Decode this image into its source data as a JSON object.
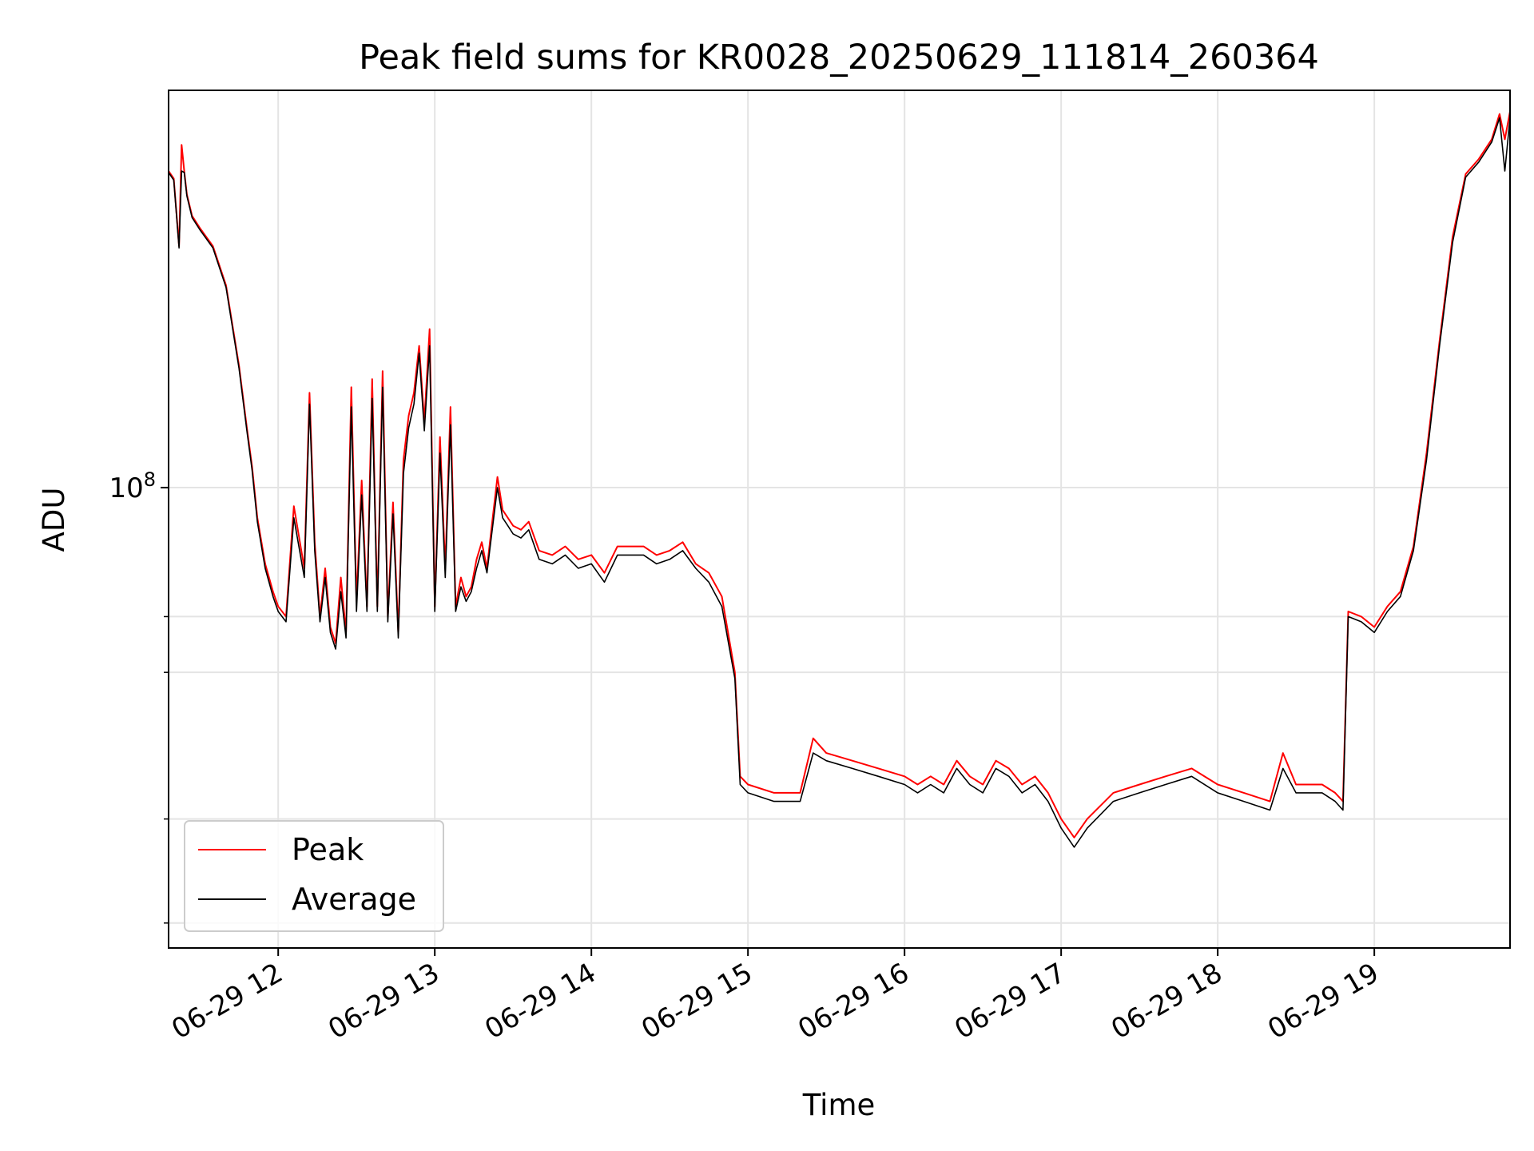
{
  "chart_data": {
    "type": "line",
    "title": "Peak field sums for KR0028_20250629_111814_260364",
    "xlabel": "Time",
    "ylabel": "ADU",
    "y_scale": "log",
    "ylim": [
      28000000,
      300000000
    ],
    "xlim": [
      "2025-06-29 11:18",
      "2025-06-29 19:52"
    ],
    "x_ticks": [
      "06-29 12",
      "06-29 13",
      "06-29 14",
      "06-29 15",
      "06-29 16",
      "06-29 17",
      "06-29 18",
      "06-29 19"
    ],
    "x_tick_values": [
      "2025-06-29 12:00",
      "2025-06-29 13:00",
      "2025-06-29 14:00",
      "2025-06-29 15:00",
      "2025-06-29 16:00",
      "2025-06-29 17:00",
      "2025-06-29 18:00",
      "2025-06-29 19:00"
    ],
    "y_tick_labels": [
      {
        "base": "10",
        "exp": "8",
        "value": 100000000
      }
    ],
    "y_minor_ticks": [
      30000000,
      40000000,
      60000000,
      70000000
    ],
    "grid": true,
    "legend_position": "lower-left",
    "colors": {
      "Peak": "#ff0000",
      "Average": "#000000"
    },
    "series": [
      {
        "name": "Peak",
        "x": [
          "11:18",
          "11:20",
          "11:22",
          "11:23",
          "11:24",
          "11:25",
          "11:27",
          "11:30",
          "11:35",
          "11:40",
          "11:45",
          "11:48",
          "11:50",
          "11:52",
          "11:55",
          "11:58",
          "12:00",
          "12:03",
          "12:06",
          "12:10",
          "12:12",
          "12:14",
          "12:16",
          "12:18",
          "12:20",
          "12:22",
          "12:24",
          "12:26",
          "12:28",
          "12:30",
          "12:32",
          "12:34",
          "12:36",
          "12:38",
          "12:40",
          "12:42",
          "12:44",
          "12:46",
          "12:48",
          "12:50",
          "12:52",
          "12:54",
          "12:56",
          "12:58",
          "13:00",
          "13:02",
          "13:04",
          "13:06",
          "13:08",
          "13:10",
          "13:12",
          "13:14",
          "13:16",
          "13:18",
          "13:20",
          "13:22",
          "13:24",
          "13:26",
          "13:28",
          "13:30",
          "13:33",
          "13:36",
          "13:40",
          "13:45",
          "13:50",
          "13:55",
          "14:00",
          "14:05",
          "14:10",
          "14:15",
          "14:20",
          "14:25",
          "14:30",
          "14:35",
          "14:40",
          "14:45",
          "14:50",
          "14:55",
          "14:57",
          "15:00",
          "15:10",
          "15:20",
          "15:25",
          "15:30",
          "15:40",
          "15:50",
          "16:00",
          "16:05",
          "16:10",
          "16:15",
          "16:20",
          "16:25",
          "16:30",
          "16:35",
          "16:40",
          "16:45",
          "16:50",
          "16:55",
          "17:00",
          "17:05",
          "17:10",
          "17:20",
          "17:30",
          "17:40",
          "17:50",
          "18:00",
          "18:10",
          "18:20",
          "18:25",
          "18:30",
          "18:40",
          "18:45",
          "18:48",
          "18:50",
          "18:55",
          "19:00",
          "19:05",
          "19:10",
          "19:15",
          "19:20",
          "19:25",
          "19:30",
          "19:35",
          "19:40",
          "19:45",
          "19:48",
          "19:50",
          "19:52"
        ],
        "values": [
          240000000,
          235000000,
          195000000,
          258000000,
          240000000,
          225000000,
          212000000,
          205000000,
          195000000,
          175000000,
          140000000,
          118000000,
          106000000,
          92000000,
          81000000,
          75000000,
          72000000,
          70000000,
          95000000,
          80000000,
          130000000,
          86000000,
          70000000,
          80000000,
          68000000,
          65000000,
          78000000,
          67000000,
          132000000,
          73000000,
          102000000,
          72000000,
          135000000,
          72000000,
          138000000,
          70000000,
          96000000,
          67000000,
          108000000,
          122000000,
          130000000,
          148000000,
          120000000,
          155000000,
          72000000,
          115000000,
          80000000,
          125000000,
          72000000,
          78000000,
          74000000,
          76000000,
          82000000,
          86000000,
          80000000,
          91000000,
          103000000,
          94000000,
          92000000,
          90000000,
          89000000,
          91000000,
          84000000,
          83000000,
          85000000,
          82000000,
          83000000,
          79000000,
          85000000,
          85000000,
          85000000,
          83000000,
          84000000,
          86000000,
          81000000,
          79000000,
          74000000,
          60000000,
          45000000,
          44000000,
          43000000,
          43000000,
          50000000,
          48000000,
          47000000,
          46000000,
          45000000,
          44000000,
          45000000,
          44000000,
          47000000,
          45000000,
          44000000,
          47000000,
          46000000,
          44000000,
          45000000,
          43000000,
          40000000,
          38000000,
          40000000,
          43000000,
          44000000,
          45000000,
          46000000,
          44000000,
          43000000,
          42000000,
          48000000,
          44000000,
          44000000,
          43000000,
          42000000,
          71000000,
          70000000,
          68000000,
          72000000,
          75000000,
          85000000,
          110000000,
          150000000,
          200000000,
          238000000,
          248000000,
          262000000,
          281000000,
          262000000,
          283000000
        ]
      },
      {
        "name": "Average",
        "x": [
          "11:18",
          "11:20",
          "11:22",
          "11:23",
          "11:24",
          "11:25",
          "11:27",
          "11:30",
          "11:35",
          "11:40",
          "11:45",
          "11:48",
          "11:50",
          "11:52",
          "11:55",
          "11:58",
          "12:00",
          "12:03",
          "12:06",
          "12:10",
          "12:12",
          "12:14",
          "12:16",
          "12:18",
          "12:20",
          "12:22",
          "12:24",
          "12:26",
          "12:28",
          "12:30",
          "12:32",
          "12:34",
          "12:36",
          "12:38",
          "12:40",
          "12:42",
          "12:44",
          "12:46",
          "12:48",
          "12:50",
          "12:52",
          "12:54",
          "12:56",
          "12:58",
          "13:00",
          "13:02",
          "13:04",
          "13:06",
          "13:08",
          "13:10",
          "13:12",
          "13:14",
          "13:16",
          "13:18",
          "13:20",
          "13:22",
          "13:24",
          "13:26",
          "13:28",
          "13:30",
          "13:33",
          "13:36",
          "13:40",
          "13:45",
          "13:50",
          "13:55",
          "14:00",
          "14:05",
          "14:10",
          "14:15",
          "14:20",
          "14:25",
          "14:30",
          "14:35",
          "14:40",
          "14:45",
          "14:50",
          "14:55",
          "14:57",
          "15:00",
          "15:10",
          "15:20",
          "15:25",
          "15:30",
          "15:40",
          "15:50",
          "16:00",
          "16:05",
          "16:10",
          "16:15",
          "16:20",
          "16:25",
          "16:30",
          "16:35",
          "16:40",
          "16:45",
          "16:50",
          "16:55",
          "17:00",
          "17:05",
          "17:10",
          "17:20",
          "17:30",
          "17:40",
          "17:50",
          "18:00",
          "18:10",
          "18:20",
          "18:25",
          "18:30",
          "18:40",
          "18:45",
          "18:48",
          "18:50",
          "18:55",
          "19:00",
          "19:05",
          "19:10",
          "19:15",
          "19:20",
          "19:25",
          "19:30",
          "19:35",
          "19:40",
          "19:45",
          "19:48",
          "19:50",
          "19:52"
        ],
        "values": [
          239000000,
          234000000,
          194000000,
          240000000,
          239000000,
          224000000,
          211000000,
          204000000,
          194000000,
          174000000,
          139000000,
          117000000,
          105000000,
          91000000,
          80000000,
          74000000,
          71000000,
          69000000,
          92000000,
          78000000,
          126000000,
          84000000,
          69000000,
          78000000,
          67000000,
          64000000,
          75000000,
          66000000,
          125000000,
          71000000,
          98000000,
          71000000,
          128000000,
          71000000,
          132000000,
          69000000,
          93000000,
          66000000,
          104000000,
          118000000,
          126000000,
          145000000,
          117000000,
          148000000,
          71000000,
          110000000,
          78000000,
          119000000,
          71000000,
          76000000,
          73000000,
          75000000,
          80000000,
          84000000,
          79000000,
          89000000,
          100000000,
          92000000,
          90000000,
          88000000,
          87000000,
          89000000,
          82000000,
          81000000,
          83000000,
          80000000,
          81000000,
          77000000,
          83000000,
          83000000,
          83000000,
          81000000,
          82000000,
          84000000,
          80000000,
          77000000,
          72000000,
          59000000,
          44000000,
          43000000,
          42000000,
          42000000,
          48000000,
          47000000,
          46000000,
          45000000,
          44000000,
          43000000,
          44000000,
          43000000,
          46000000,
          44000000,
          43000000,
          46000000,
          45000000,
          43000000,
          44000000,
          42000000,
          39000000,
          37000000,
          39000000,
          42000000,
          43000000,
          44000000,
          45000000,
          43000000,
          42000000,
          41000000,
          46000000,
          43000000,
          43000000,
          42000000,
          41000000,
          70000000,
          69000000,
          67000000,
          71000000,
          74000000,
          84000000,
          108000000,
          148000000,
          197000000,
          236000000,
          246000000,
          260000000,
          278000000,
          240000000,
          278000000
        ]
      }
    ]
  }
}
